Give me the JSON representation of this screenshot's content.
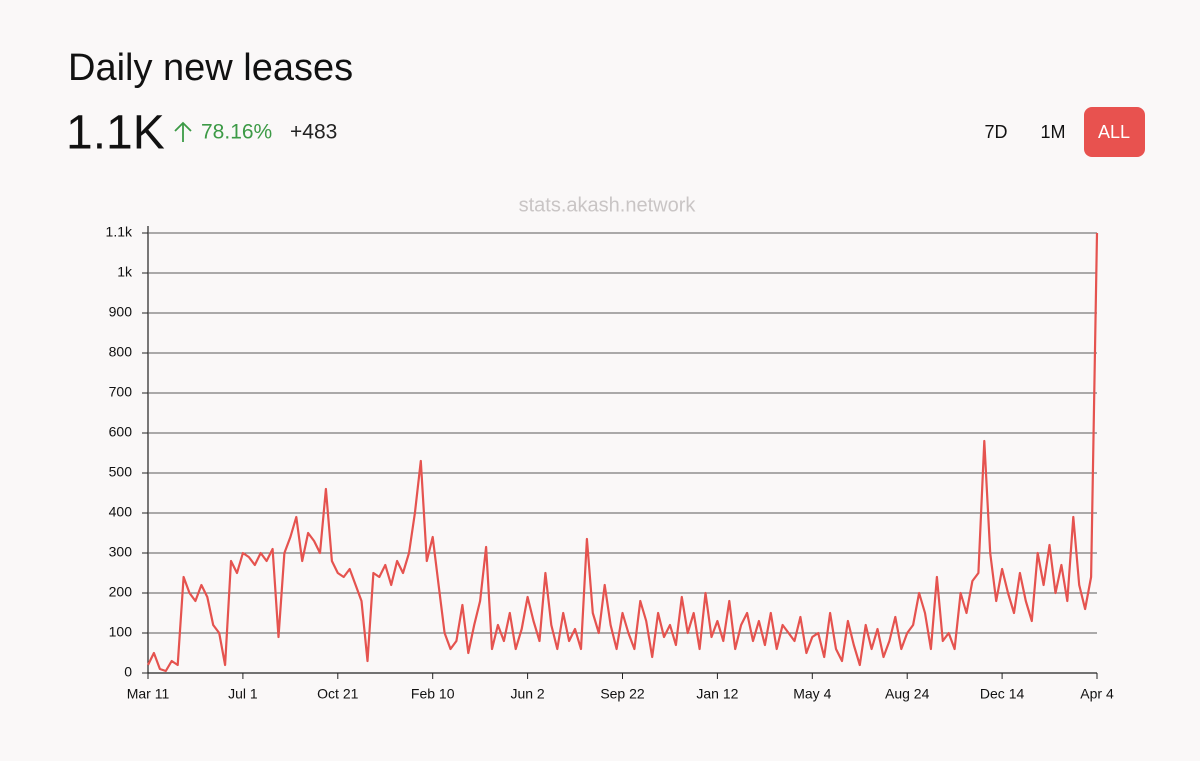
{
  "header": {
    "title": "Daily new leases",
    "value": "1.1K",
    "change": "78.16%",
    "delta": "+483",
    "buttons": [
      "7D",
      "1M",
      "ALL"
    ],
    "active": "ALL"
  },
  "chart_data": {
    "type": "line",
    "watermark": "stats.akash.network",
    "color": "#e5534f",
    "grid": true,
    "ylim": [
      0,
      1100
    ],
    "yticks": [
      0,
      100,
      200,
      300,
      400,
      500,
      600,
      700,
      800,
      900,
      {
        "value": 1000,
        "label": "1k"
      },
      {
        "value": 1100,
        "label": "1.1k"
      }
    ],
    "categories": [
      "Mar 11",
      null,
      null,
      null,
      null,
      null,
      null,
      null,
      null,
      null,
      null,
      null,
      null,
      null,
      null,
      null,
      "Jul 1",
      null,
      null,
      null,
      null,
      null,
      null,
      null,
      null,
      null,
      null,
      null,
      null,
      null,
      null,
      null,
      "Oct 21",
      null,
      null,
      null,
      null,
      null,
      null,
      null,
      null,
      null,
      null,
      null,
      null,
      null,
      null,
      null,
      "Feb 10",
      null,
      null,
      null,
      null,
      null,
      null,
      null,
      null,
      null,
      null,
      null,
      null,
      null,
      null,
      null,
      "Jun 2",
      null,
      null,
      null,
      null,
      null,
      null,
      null,
      null,
      null,
      null,
      null,
      null,
      null,
      null,
      null,
      "Sep 22",
      null,
      null,
      null,
      null,
      null,
      null,
      null,
      null,
      null,
      null,
      null,
      null,
      null,
      null,
      null,
      "Jan 12",
      null,
      null,
      null,
      null,
      null,
      null,
      null,
      null,
      null,
      null,
      null,
      null,
      null,
      null,
      null,
      "May 4",
      null,
      null,
      null,
      null,
      null,
      null,
      null,
      null,
      null,
      null,
      null,
      null,
      null,
      null,
      null,
      "Aug 24",
      null,
      null,
      null,
      null,
      null,
      null,
      null,
      null,
      null,
      null,
      null,
      null,
      null,
      null,
      null,
      "Dec 14",
      null,
      null,
      null,
      null,
      null,
      null,
      null,
      null,
      null,
      null,
      null,
      null,
      null,
      null,
      null,
      "Apr 4"
    ],
    "values": [
      20,
      50,
      10,
      5,
      30,
      20,
      240,
      200,
      180,
      220,
      190,
      120,
      100,
      20,
      280,
      250,
      300,
      290,
      270,
      300,
      280,
      310,
      90,
      300,
      340,
      390,
      280,
      350,
      330,
      300,
      460,
      280,
      250,
      240,
      260,
      220,
      180,
      30,
      250,
      240,
      270,
      220,
      280,
      250,
      300,
      400,
      530,
      280,
      340,
      220,
      100,
      60,
      80,
      170,
      50,
      120,
      180,
      315,
      60,
      120,
      80,
      150,
      60,
      110,
      190,
      130,
      80,
      250,
      120,
      60,
      150,
      80,
      110,
      60,
      335,
      150,
      100,
      220,
      120,
      60,
      150,
      100,
      60,
      180,
      130,
      40,
      150,
      90,
      120,
      70,
      190,
      100,
      150,
      60,
      200,
      90,
      130,
      80,
      180,
      60,
      120,
      150,
      80,
      130,
      70,
      150,
      60,
      120,
      100,
      80,
      140,
      50,
      90,
      100,
      40,
      150,
      60,
      30,
      130,
      70,
      20,
      120,
      60,
      110,
      40,
      80,
      140,
      60,
      100,
      120,
      200,
      150,
      60,
      240,
      80,
      100,
      60,
      200,
      150,
      230,
      250,
      580,
      300,
      180,
      260,
      200,
      150,
      250,
      180,
      130,
      300,
      220,
      320,
      200,
      270,
      180,
      390,
      220,
      160,
      240,
      1100
    ]
  }
}
